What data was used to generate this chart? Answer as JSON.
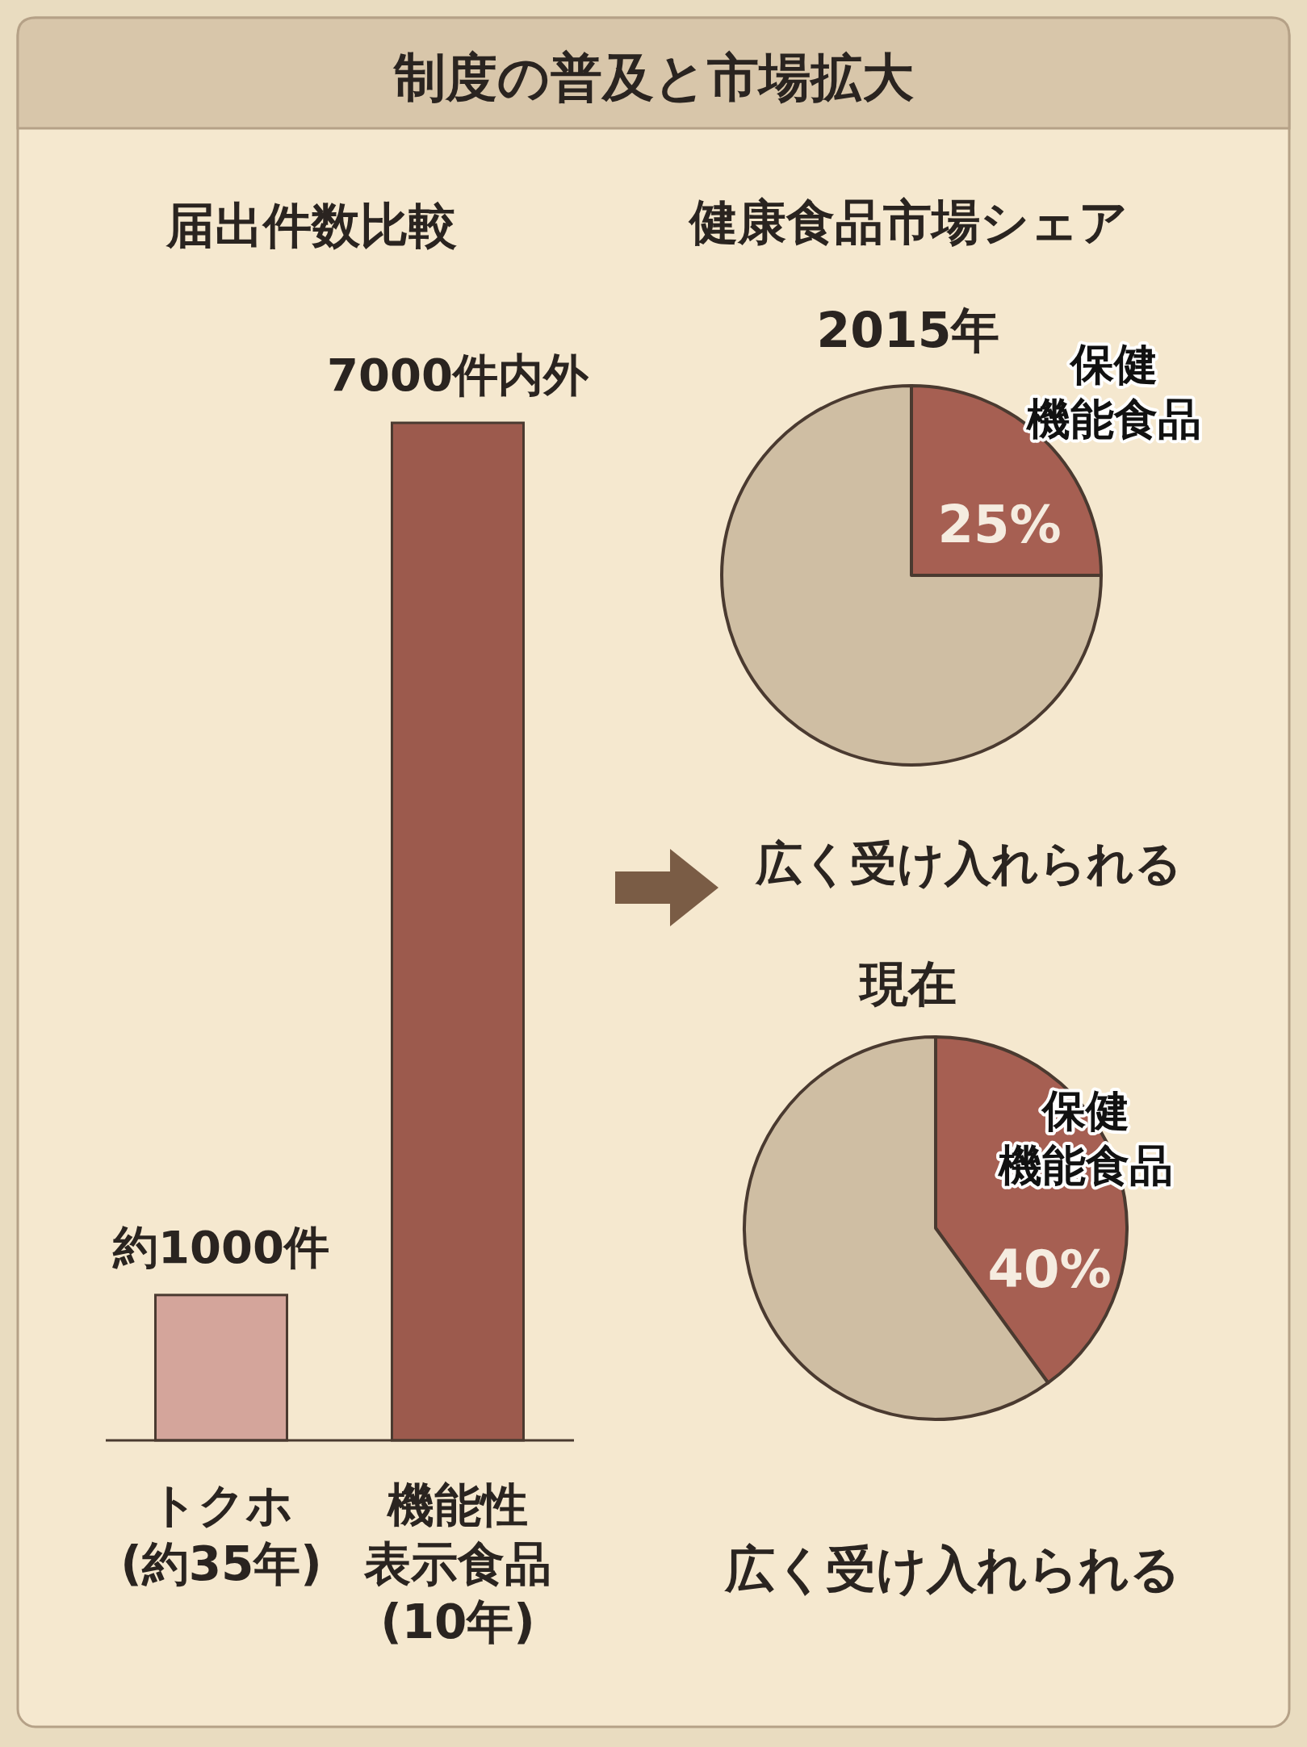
{
  "chart_data": [
    {
      "type": "bar",
      "title": "制度の普及と市場拡大",
      "subtitle": "届出件数比較",
      "categories": [
        "トクホ(約35年)",
        "機能性表示食品(10年)"
      ],
      "values": [
        1000,
        7000
      ],
      "colors": [
        "#d4a59b",
        "#9c5a4d"
      ],
      "value_labels": [
        "約1000件",
        "7000件内外"
      ]
    },
    {
      "type": "pie",
      "title": "健康食品市場シェア",
      "subtitle": "2015年",
      "categories": [
        "保健機能食品",
        null
      ],
      "values": [
        25,
        75
      ],
      "colors": [
        "#a65f52",
        "#cfbea3"
      ],
      "value_labels": [
        "25%",
        null
      ],
      "annotations": [
        "広く受け入れられる"
      ]
    },
    {
      "type": "pie",
      "title": "現在",
      "categories": [
        "保健機能食品",
        null
      ],
      "values": [
        40,
        60
      ],
      "colors": [
        "#a65f52",
        "#cfbea3"
      ],
      "value_labels": [
        "40%",
        null
      ],
      "annotations": [
        "広く受け入れられる"
      ]
    }
  ]
}
